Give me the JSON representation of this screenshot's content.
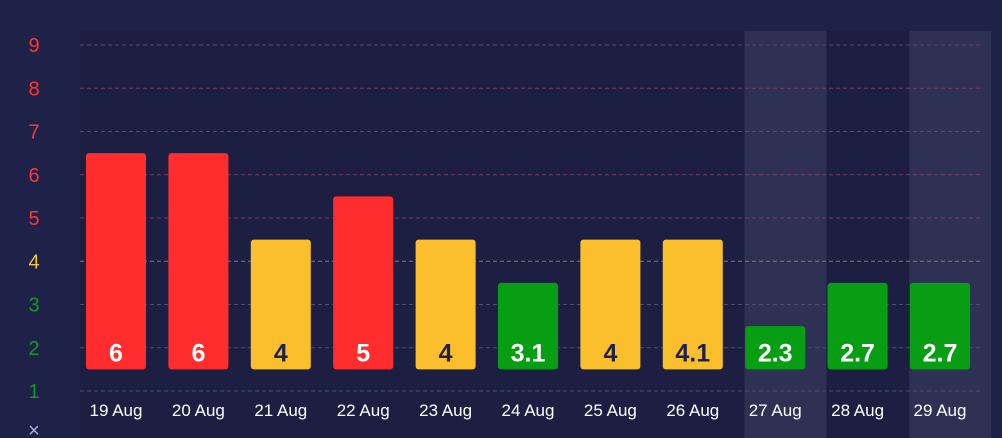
{
  "chart_data": {
    "type": "bar",
    "title": "",
    "xlabel": "",
    "ylabel": "",
    "ylim": [
      1,
      9
    ],
    "yticks": [
      "1",
      "2",
      "3",
      "4",
      "5",
      "6",
      "7",
      "8",
      "9"
    ],
    "y_axis_marker": "×",
    "categories": [
      "19 Aug",
      "20 Aug",
      "21 Aug",
      "22 Aug",
      "23 Aug",
      "24 Aug",
      "25 Aug",
      "26 Aug",
      "27 Aug",
      "28 Aug",
      "29 Aug"
    ],
    "values": [
      6,
      6,
      4,
      5,
      4,
      3.1,
      4,
      4.1,
      2.3,
      2.7,
      2.7
    ],
    "value_labels": [
      "6",
      "6",
      "4",
      "5",
      "4",
      "3.1",
      "4",
      "4.1",
      "2.3",
      "2.7",
      "2.7"
    ],
    "highlighted_categories": [
      "27 Aug",
      "29 Aug"
    ],
    "grid": true,
    "colors": {
      "high": "#ff2d2d",
      "medium": "#fbbf2e",
      "low": "#079e13",
      "background": "#1f2248",
      "plot_background": "#1c1f42",
      "highlight": "#2e3153"
    }
  }
}
